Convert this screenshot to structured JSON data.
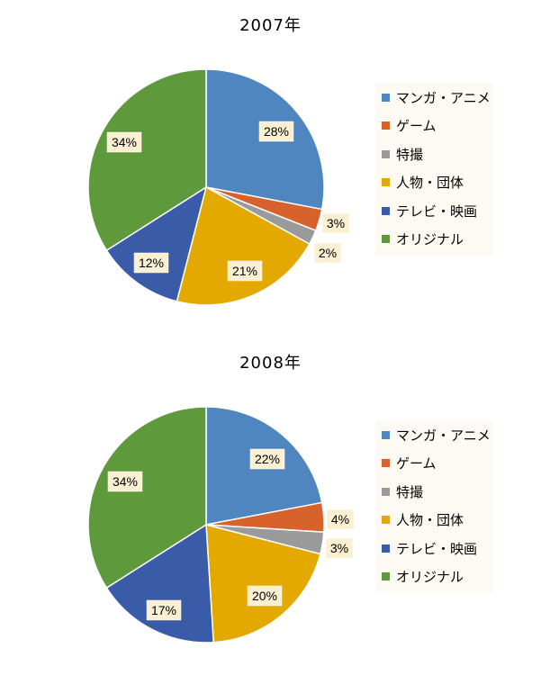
{
  "chart_data": [
    {
      "type": "pie",
      "title": "2007年",
      "categories": [
        "マンガ・アニメ",
        "ゲーム",
        "特撮",
        "人物・団体",
        "テレビ・映画",
        "オリジナル"
      ],
      "values": [
        28,
        3,
        2,
        21,
        12,
        34
      ],
      "labels": [
        "28%",
        "3%",
        "2%",
        "21%",
        "12%",
        "34%"
      ],
      "colors": [
        "#4f86bf",
        "#d8622b",
        "#9a9a9a",
        "#e3a900",
        "#3a5ba8",
        "#5e9a3c"
      ],
      "legend": "right"
    },
    {
      "type": "pie",
      "title": "2008年",
      "categories": [
        "マンガ・アニメ",
        "ゲーム",
        "特撮",
        "人物・団体",
        "テレビ・映画",
        "オリジナル"
      ],
      "values": [
        22,
        4,
        3,
        20,
        17,
        34
      ],
      "labels": [
        "22%",
        "4%",
        "3%",
        "20%",
        "17%",
        "34%"
      ],
      "colors": [
        "#4f86bf",
        "#d8622b",
        "#9a9a9a",
        "#e3a900",
        "#3a5ba8",
        "#5e9a3c"
      ],
      "legend": "right"
    }
  ]
}
